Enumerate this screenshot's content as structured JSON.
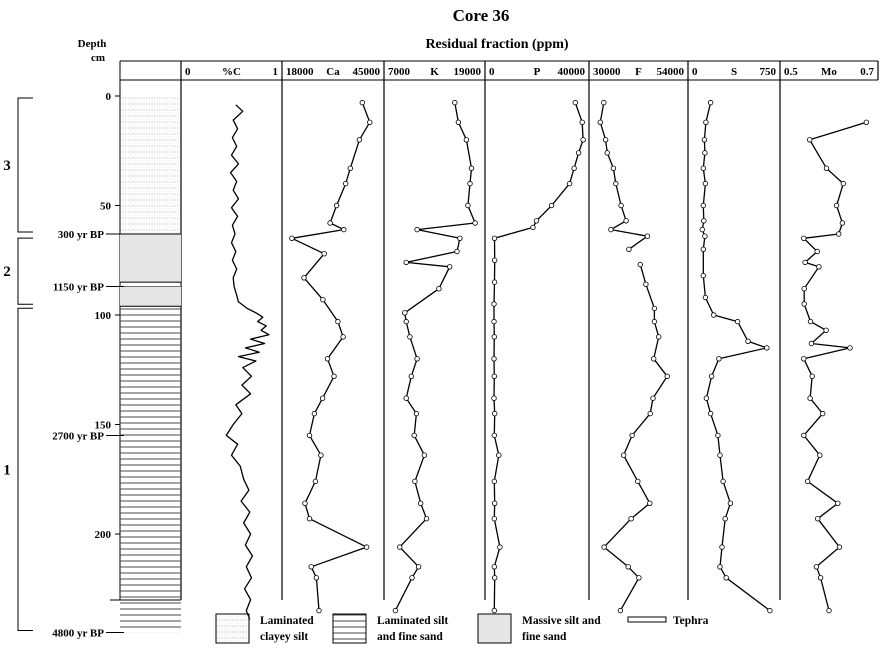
{
  "chart_data": {
    "type": "line",
    "title": "Core 36",
    "subtitle": "Residual fraction (ppm)",
    "ylabel_lines": [
      "Depth",
      "cm"
    ],
    "y_ticks": [
      0,
      50,
      100,
      150,
      200
    ],
    "ylim": [
      0,
      245
    ],
    "ages": [
      {
        "label": "300 yr BP",
        "depth": 63
      },
      {
        "label": "1150 yr BP",
        "depth": 87
      },
      {
        "label": "2700 yr BP",
        "depth": 155
      },
      {
        "label": "4800 yr BP",
        "depth": 245
      }
    ],
    "zones": [
      {
        "label": "3",
        "top": 0,
        "bottom": 63
      },
      {
        "label": "2",
        "top": 64,
        "bottom": 96
      },
      {
        "label": "1",
        "top": 96,
        "bottom": 245
      }
    ],
    "lithology": [
      {
        "type": "laminated-clayey-silt",
        "top": 0,
        "bottom": 63
      },
      {
        "type": "massive-silt",
        "top": 63,
        "bottom": 85
      },
      {
        "type": "tephra",
        "top": 85,
        "bottom": 87
      },
      {
        "type": "massive-silt",
        "top": 87,
        "bottom": 96
      },
      {
        "type": "laminated-silt",
        "top": 96,
        "bottom": 245
      }
    ],
    "legend": [
      {
        "type": "laminated-clayey-silt",
        "line1": "Laminated",
        "line2": "clayey silt"
      },
      {
        "type": "laminated-silt",
        "line1": "Laminated silt",
        "line2": "and fine sand"
      },
      {
        "type": "massive-silt",
        "line1": "Massive silt and",
        "line2": "fine sand"
      },
      {
        "type": "tephra",
        "line1": "Tephra",
        "line2": ""
      }
    ],
    "series": [
      {
        "name": "%C",
        "min_label": "0",
        "max_label": "1",
        "xlim": [
          0,
          1
        ],
        "markers": false,
        "segments": [
          [
            [
              0.55,
              4
            ],
            [
              0.63,
              7
            ],
            [
              0.52,
              11
            ],
            [
              0.57,
              15
            ],
            [
              0.51,
              19
            ],
            [
              0.56,
              23
            ],
            [
              0.5,
              27
            ],
            [
              0.58,
              31
            ],
            [
              0.49,
              35
            ],
            [
              0.56,
              39
            ],
            [
              0.52,
              43
            ],
            [
              0.58,
              47
            ],
            [
              0.5,
              51
            ],
            [
              0.57,
              55
            ],
            [
              0.51,
              59
            ],
            [
              0.54,
              63
            ],
            [
              0.5,
              67
            ],
            [
              0.55,
              71
            ],
            [
              0.51,
              75
            ],
            [
              0.56,
              79
            ],
            [
              0.52,
              83
            ],
            [
              0.53,
              87
            ],
            [
              0.56,
              91
            ],
            [
              0.58,
              94
            ],
            [
              0.68,
              97
            ],
            [
              0.78,
              99
            ],
            [
              0.86,
              101
            ],
            [
              0.8,
              103
            ],
            [
              0.9,
              105
            ],
            [
              0.84,
              107
            ],
            [
              0.93,
              109
            ],
            [
              0.72,
              111
            ],
            [
              0.88,
              113
            ],
            [
              0.66,
              115
            ],
            [
              0.82,
              117
            ],
            [
              0.58,
              119
            ],
            [
              0.78,
              121
            ],
            [
              0.63,
              124
            ],
            [
              0.73,
              128
            ],
            [
              0.62,
              132
            ],
            [
              0.72,
              136
            ],
            [
              0.55,
              141
            ],
            [
              0.62,
              145
            ],
            [
              0.52,
              150
            ],
            [
              0.44,
              155
            ],
            [
              0.57,
              159
            ],
            [
              0.5,
              164
            ],
            [
              0.6,
              169
            ],
            [
              0.64,
              175
            ],
            [
              0.7,
              180
            ],
            [
              0.61,
              185
            ],
            [
              0.71,
              190
            ],
            [
              0.64,
              195
            ],
            [
              0.72,
              200
            ],
            [
              0.66,
              205
            ],
            [
              0.74,
              210
            ],
            [
              0.67,
              215
            ],
            [
              0.73,
              220
            ],
            [
              0.65,
              225
            ],
            [
              0.72,
              230
            ],
            [
              0.67,
              235
            ],
            [
              0.71,
              239
            ]
          ]
        ]
      },
      {
        "name": "Ca",
        "min_label": "18000",
        "max_label": "45000",
        "xlim": [
          18000,
          45000
        ],
        "markers": true,
        "segments": [
          [
            [
              40500,
              3
            ],
            [
              42800,
              12
            ],
            [
              39600,
              20
            ],
            [
              36800,
              33
            ],
            [
              35400,
              40
            ],
            [
              32600,
              50
            ],
            [
              30600,
              58
            ],
            [
              34800,
              61
            ],
            [
              18900,
              65
            ],
            [
              28800,
              72
            ],
            [
              22600,
              83
            ],
            [
              28400,
              93
            ],
            [
              33000,
              103
            ],
            [
              34600,
              110
            ],
            [
              29800,
              120
            ],
            [
              31800,
              128
            ],
            [
              28300,
              138
            ],
            [
              25800,
              145
            ],
            [
              24300,
              155
            ],
            [
              27800,
              164
            ],
            [
              26100,
              176
            ],
            [
              22900,
              186
            ],
            [
              24300,
              193
            ],
            [
              41800,
              206
            ],
            [
              24800,
              215
            ],
            [
              26400,
              220
            ],
            [
              27200,
              235
            ]
          ]
        ]
      },
      {
        "name": "K",
        "min_label": "7000",
        "max_label": "19000",
        "xlim": [
          7000,
          19000
        ],
        "markers": true,
        "segments": [
          [
            [
              15800,
              3
            ],
            [
              16300,
              12
            ],
            [
              17400,
              20
            ],
            [
              18100,
              33
            ],
            [
              17900,
              40
            ],
            [
              17600,
              50
            ],
            [
              18600,
              58
            ],
            [
              10600,
              61
            ],
            [
              16500,
              65
            ],
            [
              16100,
              71
            ],
            [
              9100,
              76
            ],
            [
              15100,
              78
            ],
            [
              13600,
              88
            ],
            [
              8900,
              99
            ],
            [
              9100,
              103
            ],
            [
              9600,
              110
            ],
            [
              10600,
              120
            ],
            [
              9800,
              128
            ],
            [
              9100,
              138
            ],
            [
              10500,
              145
            ],
            [
              10200,
              155
            ],
            [
              11600,
              164
            ],
            [
              10300,
              176
            ],
            [
              11100,
              186
            ],
            [
              11900,
              193
            ],
            [
              8200,
              206
            ],
            [
              10800,
              215
            ],
            [
              9900,
              220
            ],
            [
              7600,
              235
            ]
          ]
        ]
      },
      {
        "name": "P",
        "min_label": "0",
        "max_label": "40000",
        "xlim": [
          0,
          40000
        ],
        "markers": true,
        "segments": [
          [
            [
              37000,
              3
            ],
            [
              40100,
              12
            ],
            [
              40500,
              20
            ],
            [
              38500,
              26
            ],
            [
              36500,
              33
            ],
            [
              34500,
              40
            ],
            [
              26500,
              50
            ],
            [
              19800,
              57
            ],
            [
              18200,
              60
            ],
            [
              1100,
              65
            ],
            [
              1200,
              75
            ],
            [
              1100,
              85
            ],
            [
              900,
              95
            ],
            [
              900,
              103
            ],
            [
              1000,
              110
            ],
            [
              900,
              120
            ],
            [
              1000,
              128
            ],
            [
              900,
              138
            ],
            [
              1200,
              145
            ],
            [
              1000,
              155
            ],
            [
              3000,
              164
            ],
            [
              1000,
              176
            ],
            [
              1200,
              186
            ],
            [
              1000,
              193
            ],
            [
              3500,
              206
            ],
            [
              1000,
              215
            ],
            [
              1200,
              220
            ],
            [
              1000,
              235
            ]
          ]
        ]
      },
      {
        "name": "F",
        "min_label": "30000",
        "max_label": "54000",
        "xlim": [
          30000,
          54000
        ],
        "markers": true,
        "segments": [
          [
            [
              32200,
              3
            ],
            [
              31200,
              12
            ],
            [
              32700,
              20
            ],
            [
              33200,
              26
            ],
            [
              34900,
              33
            ],
            [
              35600,
              40
            ],
            [
              37100,
              50
            ],
            [
              38500,
              57
            ],
            [
              34200,
              61
            ],
            [
              44500,
              64
            ],
            [
              39300,
              70
            ]
          ],
          [
            [
              42500,
              77
            ],
            [
              44100,
              86
            ],
            [
              46500,
              97
            ],
            [
              46500,
              103
            ],
            [
              47700,
              110
            ],
            [
              46300,
              120
            ],
            [
              50100,
              128
            ],
            [
              46100,
              138
            ],
            [
              45300,
              145
            ],
            [
              40200,
              155
            ],
            [
              37800,
              164
            ],
            [
              41800,
              176
            ],
            [
              45200,
              186
            ],
            [
              39900,
              193
            ],
            [
              32300,
              206
            ],
            [
              39100,
              215
            ],
            [
              42100,
              220
            ],
            [
              36900,
              235
            ]
          ]
        ]
      },
      {
        "name": "S",
        "min_label": "0",
        "max_label": "750",
        "xlim": [
          0,
          750
        ],
        "markers": true,
        "segments": [
          [
            [
              150,
              3
            ],
            [
              105,
              12
            ],
            [
              90,
              20
            ],
            [
              95,
              26
            ],
            [
              80,
              33
            ],
            [
              100,
              40
            ],
            [
              80,
              50
            ],
            [
              85,
              57
            ],
            [
              70,
              61
            ],
            [
              95,
              64
            ],
            [
              80,
              70
            ],
            [
              80,
              82
            ],
            [
              100,
              92
            ],
            [
              180,
              100
            ],
            [
              410,
              103
            ],
            [
              510,
              112
            ],
            [
              690,
              115
            ],
            [
              230,
              120
            ],
            [
              160,
              128
            ],
            [
              110,
              138
            ],
            [
              150,
              145
            ],
            [
              220,
              155
            ],
            [
              240,
              164
            ],
            [
              270,
              176
            ],
            [
              340,
              186
            ],
            [
              290,
              193
            ],
            [
              260,
              206
            ],
            [
              240,
              215
            ],
            [
              300,
              220
            ],
            [
              720,
              235
            ]
          ]
        ]
      },
      {
        "name": "Mo",
        "min_label": "0.5",
        "max_label": "0.7",
        "xlim": [
          0.5,
          0.7
        ],
        "markers": true,
        "segments": [
          [
            [
              0.689,
              12
            ],
            [
              0.554,
              20
            ],
            [
              0.594,
              33
            ],
            [
              0.634,
              40
            ],
            [
              0.618,
              50
            ],
            [
              0.632,
              58
            ],
            [
              0.623,
              63
            ],
            [
              0.54,
              65
            ],
            [
              0.572,
              71
            ],
            [
              0.543,
              76
            ],
            [
              0.576,
              78
            ],
            [
              0.541,
              88
            ],
            [
              0.541,
              95
            ],
            [
              0.556,
              103
            ],
            [
              0.593,
              107
            ],
            [
              0.558,
              113
            ],
            [
              0.65,
              115
            ],
            [
              0.54,
              120
            ],
            [
              0.56,
              128
            ],
            [
              0.555,
              138
            ],
            [
              0.585,
              145
            ],
            [
              0.54,
              155
            ],
            [
              0.578,
              164
            ],
            [
              0.549,
              176
            ],
            [
              0.621,
              186
            ],
            [
              0.573,
              193
            ],
            [
              0.625,
              206
            ],
            [
              0.57,
              215
            ],
            [
              0.58,
              220
            ],
            [
              0.6,
              235
            ]
          ]
        ]
      }
    ]
  }
}
